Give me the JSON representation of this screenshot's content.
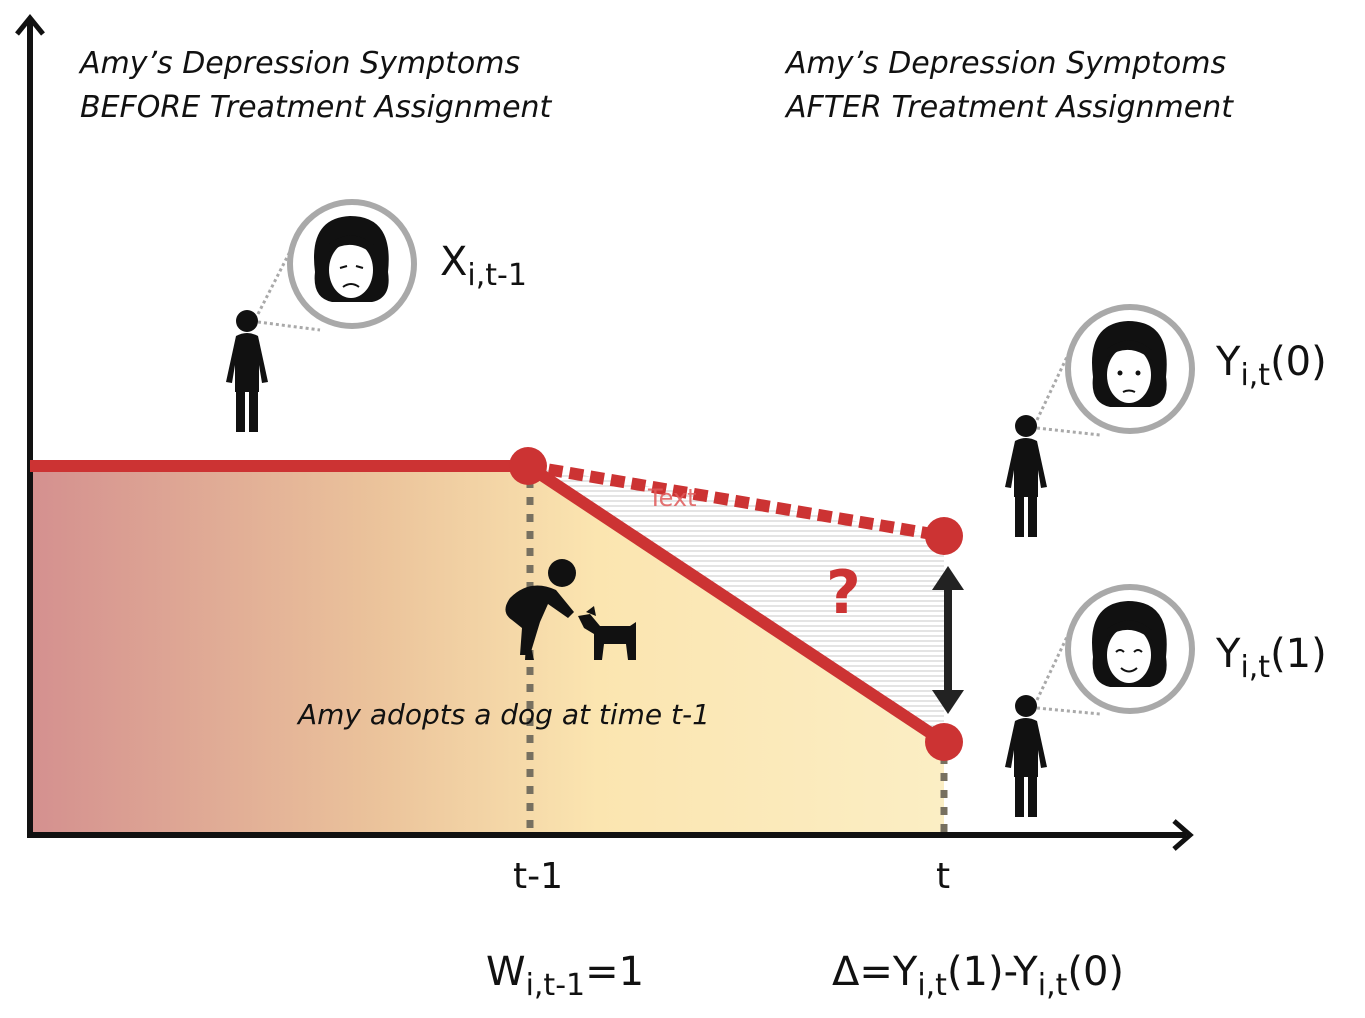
{
  "captions": {
    "before_line1": "Amy’s Depression Symptoms",
    "before_line2": "BEFORE Treatment Assignment",
    "after_line1": "Amy’s Depression Symptoms",
    "after_line2": "AFTER Treatment Assignment",
    "dog_event": "Amy adopts a dog at time t-1",
    "overlay_text": "Text",
    "question_mark": "?"
  },
  "axis": {
    "tick_t_minus_1": "t-1",
    "tick_t": "t"
  },
  "math": {
    "x_label": {
      "main": "X",
      "sub": "i,t-1"
    },
    "y0_label": {
      "main": "Y",
      "sub": "i,t",
      "tail": "(0)"
    },
    "y1_label": {
      "main": "Y",
      "sub": "i,t",
      "tail": "(1)"
    },
    "w_label": {
      "main": "W",
      "sub": "i,t-1",
      "tail": "=1"
    },
    "delta_label": {
      "part1": "Δ=Y",
      "sub1": "i,t",
      "part2": "(1)-Y",
      "sub2": "i,t",
      "part3": "(0)"
    }
  },
  "colors": {
    "line_red": "#cc3333",
    "fill_left": "#d4908f",
    "fill_right": "#fbeab0",
    "dotted_grey": "#777060",
    "axis_black": "#111111",
    "circle_grey": "#a9a9a9"
  }
}
